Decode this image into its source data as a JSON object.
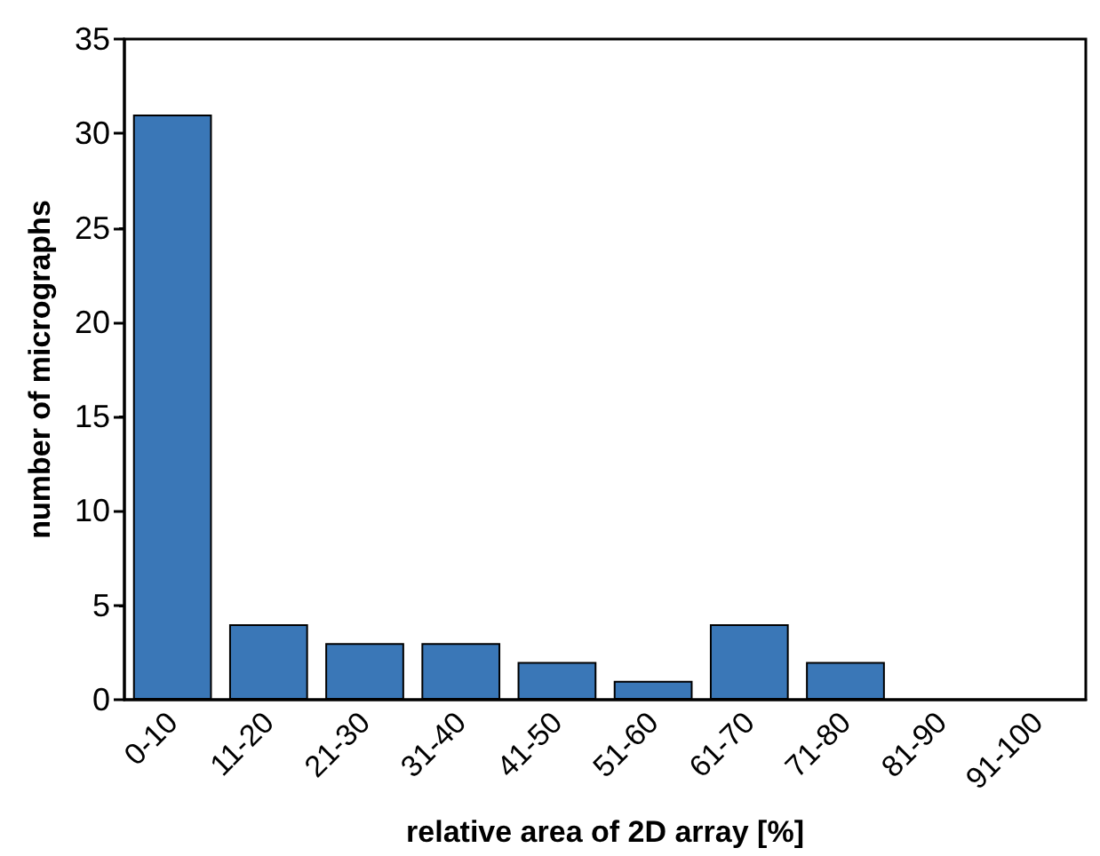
{
  "chart_data": {
    "type": "bar",
    "xlabel": "relative area of 2D array [%]",
    "ylabel": "number of micrographs",
    "categories": [
      "0-10",
      "11-20",
      "21-30",
      "31-40",
      "41-50",
      "51-60",
      "61-70",
      "71-80",
      "81-90",
      "91-100"
    ],
    "values": [
      31,
      4,
      3,
      3,
      2,
      1,
      4,
      2,
      0,
      0
    ],
    "color": "#3a77b7",
    "ylim": [
      0,
      35
    ],
    "yticks": [
      0,
      5,
      10,
      15,
      20,
      25,
      30,
      35
    ],
    "grid": false
  }
}
